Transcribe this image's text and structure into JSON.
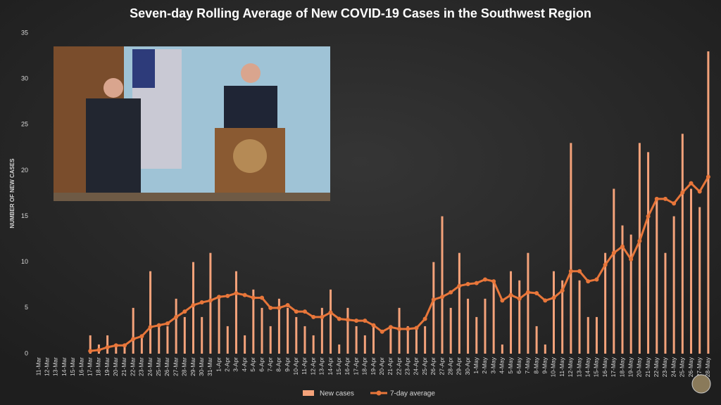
{
  "chart_data": {
    "type": "bar",
    "title": "Seven-day Rolling Average of New COVID-19 Cases in the Southwest Region",
    "y_label": "NUMBER OF NEW CASES",
    "categories": [
      "11-Mar",
      "12-Mar",
      "13-Mar",
      "14-Mar",
      "15-Mar",
      "16-Mar",
      "17-Mar",
      "18-Mar",
      "19-Mar",
      "20-Mar",
      "21-Mar",
      "22-Mar",
      "23-Mar",
      "24-Mar",
      "25-Mar",
      "26-Mar",
      "27-Mar",
      "28-Mar",
      "29-Mar",
      "30-Mar",
      "31-Mar",
      "1-Apr",
      "2-Apr",
      "3-Apr",
      "4-Apr",
      "5-Apr",
      "6-Apr",
      "7-Apr",
      "8-Apr",
      "9-Apr",
      "10-Apr",
      "11-Apr",
      "12-Apr",
      "13-Apr",
      "14-Apr",
      "15-Apr",
      "16-Apr",
      "17-Apr",
      "18-Apr",
      "19-Apr",
      "20-Apr",
      "21-Apr",
      "22-Apr",
      "23-Apr",
      "24-Apr",
      "25-Apr",
      "26-Apr",
      "27-Apr",
      "28-Apr",
      "29-Apr",
      "30-Apr",
      "1-May",
      "2-May",
      "3-May",
      "4-May",
      "5-May",
      "6-May",
      "7-May",
      "8-May",
      "9-May",
      "10-May",
      "11-May",
      "12-May",
      "13-May",
      "14-May",
      "15-May",
      "16-May",
      "17-May",
      "18-May",
      "19-May",
      "20-May",
      "21-May",
      "22-May",
      "23-May",
      "24-May",
      "25-May",
      "26-May",
      "27-May",
      "28-May"
    ],
    "series": [
      {
        "name": "New cases",
        "type": "bar",
        "color": "#f4a27a",
        "values": [
          0,
          0,
          0,
          0,
          0,
          0,
          2,
          1,
          2,
          1,
          1,
          5,
          2,
          9,
          3,
          3,
          6,
          4,
          10,
          4,
          11,
          6,
          3,
          9,
          2,
          7,
          5,
          3,
          6,
          5,
          4,
          3,
          2,
          5,
          7,
          1,
          5,
          3,
          2,
          3,
          0,
          3,
          5,
          3,
          3,
          3,
          10,
          15,
          5,
          11,
          6,
          4,
          6,
          8,
          1,
          9,
          8,
          11,
          3,
          1,
          9,
          8,
          23,
          8,
          4,
          4,
          11,
          18,
          14,
          13,
          23,
          22,
          17,
          11,
          15,
          24,
          18,
          16,
          33
        ]
      },
      {
        "name": "7-day average",
        "type": "line",
        "color": "#e8763a",
        "values": [
          null,
          null,
          null,
          null,
          null,
          null,
          0.3,
          0.4,
          0.7,
          0.9,
          0.9,
          1.6,
          1.9,
          2.9,
          3.1,
          3.3,
          4.0,
          4.6,
          5.3,
          5.6,
          5.8,
          6.2,
          6.3,
          6.6,
          6.4,
          6.1,
          6.1,
          5.0,
          5.0,
          5.3,
          4.6,
          4.6,
          4.0,
          4.0,
          4.5,
          3.8,
          3.7,
          3.6,
          3.6,
          3.1,
          2.4,
          2.9,
          2.7,
          2.7,
          2.8,
          3.8,
          5.9,
          6.2,
          6.7,
          7.4,
          7.6,
          7.7,
          8.1,
          7.9,
          5.8,
          6.4,
          6.0,
          6.7,
          6.6,
          5.8,
          6.1,
          6.9,
          9.0,
          9.0,
          7.9,
          8.1,
          9.7,
          11.0,
          11.7,
          10.3,
          12.3,
          15.0,
          16.9,
          16.9,
          16.4,
          17.6,
          18.6,
          17.7,
          19.3
        ]
      }
    ],
    "ylim": [
      0,
      35
    ],
    "yticks": [
      0,
      5,
      10,
      15,
      20,
      25,
      30,
      35
    ],
    "grid": false
  }
}
